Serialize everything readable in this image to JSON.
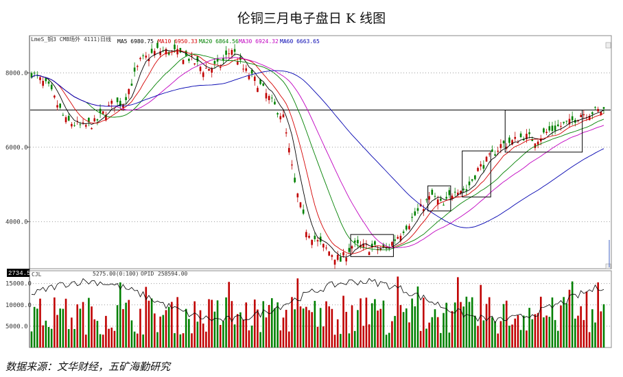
{
  "title": "伦铜三月电子盘日 K 线图",
  "source": "数据来源：文华财经，五矿海勤研究",
  "header": {
    "symbol": "LmeS_铜3 CMB场外 4111)日线",
    "ma5": "MA5 6980.75",
    "ma10": "MA10 6950.33",
    "ma20": "MA20 6864.56",
    "ma30": "MA30 6924.32",
    "ma60": "MA60 6663.65",
    "price_marker": "2734.5",
    "vol_label": "CJL",
    "vol_value": "5275.00(0:100)",
    "oi_label": "OPID",
    "oi_value": "258594.00"
  },
  "colors": {
    "ma5": "#000000",
    "ma10": "#d40000",
    "ma20": "#008000",
    "ma30": "#c000c0",
    "ma60": "#0000b0",
    "up": "#c00000",
    "down": "#008000"
  },
  "chart_data": [
    {
      "type": "candlestick",
      "title": "伦铜三月电子盘日 K 线图",
      "ylim": [
        2734.5,
        9000
      ],
      "yticks": [
        4000,
        6000,
        8000
      ],
      "ytick_labels": [
        "4000.0",
        "6000.0",
        "8000.0"
      ],
      "grid": true,
      "reference_line": 7000,
      "close_trajectory": [
        [
          0,
          8000
        ],
        [
          6,
          7600
        ],
        [
          12,
          6700
        ],
        [
          18,
          6550
        ],
        [
          22,
          6650
        ],
        [
          28,
          7150
        ],
        [
          32,
          7200
        ],
        [
          38,
          8300
        ],
        [
          44,
          8600
        ],
        [
          50,
          8550
        ],
        [
          55,
          8400
        ],
        [
          60,
          8100
        ],
        [
          66,
          8200
        ],
        [
          70,
          8650
        ],
        [
          74,
          8100
        ],
        [
          80,
          7650
        ],
        [
          84,
          7200
        ],
        [
          88,
          6800
        ],
        [
          92,
          5000
        ],
        [
          96,
          3800
        ],
        [
          100,
          3450
        ],
        [
          104,
          3200
        ],
        [
          108,
          2950
        ],
        [
          112,
          3350
        ],
        [
          118,
          3300
        ],
        [
          124,
          3250
        ],
        [
          130,
          3800
        ],
        [
          136,
          4350
        ],
        [
          140,
          4700
        ],
        [
          144,
          4400
        ],
        [
          148,
          4900
        ],
        [
          152,
          4850
        ],
        [
          156,
          5400
        ],
        [
          160,
          5700
        ],
        [
          164,
          6050
        ],
        [
          168,
          6150
        ],
        [
          172,
          6300
        ],
        [
          176,
          6200
        ],
        [
          180,
          6400
        ],
        [
          184,
          6550
        ],
        [
          188,
          6650
        ],
        [
          192,
          6900
        ],
        [
          196,
          6950
        ],
        [
          200,
          7000
        ]
      ],
      "moving_averages": [
        "MA5",
        "MA10",
        "MA20",
        "MA30",
        "MA60"
      ],
      "box_annotations": 6
    },
    {
      "type": "bar",
      "title": "CJL",
      "ylim": [
        0,
        18000
      ],
      "yticks": [
        5000,
        10000,
        15000
      ],
      "ytick_labels": [
        "5000.0",
        "10000.0",
        "15000.0"
      ],
      "series": [
        {
          "name": "OPID",
          "type": "line"
        }
      ]
    }
  ]
}
